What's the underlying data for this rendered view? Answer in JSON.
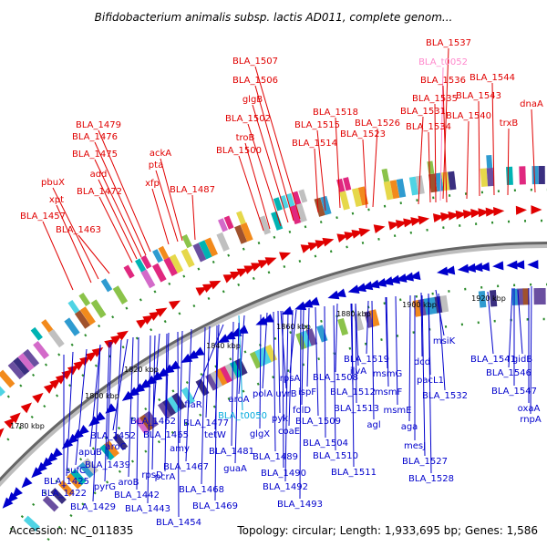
{
  "title": "Bifidobacterium animalis subsp. lactis AD011, complete genom...",
  "footer": {
    "accession": "Accession: NC_011835",
    "summary": "Topology: circular; Length: 1,933,695 bp; Genes: 1,586"
  },
  "colors": {
    "forward": "#e00000",
    "reverse": "#0000cc",
    "rna_highlight_pink": "#ff88cc",
    "rna_highlight_cyan": "#00aadd",
    "backbone": "#999999"
  },
  "kbp_labels": [
    "1780 kbp",
    "1800 kbp",
    "1820 kbp",
    "1840 kbp",
    "1860 kbp",
    "1880 kbp",
    "1900 kbp",
    "1920 kbp"
  ],
  "forward_genes": [
    "BLA_1537",
    "BLA_t0052",
    "BLA_1536",
    "BLA_1544",
    "BLA_1535",
    "BLA_1543",
    "BLA_1531",
    "BLA_1540",
    "dnaA",
    "BLA_1534",
    "trxB",
    "BLA_1507",
    "BLA_1506",
    "glgB",
    "BLA_1518",
    "BLA_1502",
    "BLA_1515",
    "BLA_1526",
    "BLA_1479",
    "troB",
    "BLA_1514",
    "BLA_1523",
    "BLA_1476",
    "ackA",
    "BLA_1500",
    "BLA_1475",
    "pta",
    "pbuX",
    "add",
    "xfp",
    "BLA_1487",
    "BLA_1472",
    "xpt",
    "BLA_1457",
    "BLA_1463"
  ],
  "reverse_genes": [
    "msiK",
    "BLA_1541",
    "gidB",
    "BLA_1519",
    "dcd",
    "BLA_1546",
    "ilvA",
    "msmG",
    "pacL1",
    "rpsA",
    "BLA_1508",
    "ispF",
    "BLA_1512",
    "BLA_1532",
    "BLA_1547",
    "flaR",
    "aroA",
    "polA",
    "uvrB",
    "msmF",
    "oxaA",
    "folD",
    "BLA_1513",
    "agl",
    "rnpA",
    "BLA_t0050",
    "pyk",
    "BLA_1509",
    "msmE",
    "BLA_1462",
    "BLA_1477",
    "aga",
    "tetW",
    "coaE",
    "BLA_1452",
    "BLA_1465",
    "glgX",
    "BLA_1504",
    "mesJ",
    "apuB",
    "aroC",
    "amy",
    "BLA_1481",
    "BLA_1489",
    "BLA_1510",
    "BLA_1527",
    "sufC",
    "BLA_1439",
    "BLA_1467",
    "guaA",
    "BLA_1511",
    "BLA_1528",
    "BLA_1425",
    "pyrG",
    "aroB",
    "rpsD",
    "pcrA",
    "BLA_1490",
    "BLA_1422",
    "BLA_1442",
    "BLA_1468",
    "BLA_1492",
    "BLA_1429",
    "BLA_1443",
    "BLA_1469",
    "BLA_1493",
    "BLA_1454"
  ]
}
